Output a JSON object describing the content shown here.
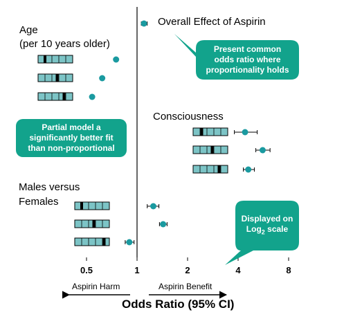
{
  "labels": {
    "age_line1": "Age",
    "age_line2": "(per 10 years older)",
    "consciousness": "Consciousness",
    "males_line1": "Males versus",
    "males_line2": "Females",
    "overall": "Overall  Effect of Aspirin",
    "harm": "Aspirin Harm",
    "benefit": "Aspirin Benefit"
  },
  "callouts": {
    "top": [
      "Present common",
      "odds ratio where",
      "proportionality holds"
    ],
    "left": [
      "Partial model a",
      "significantly better fit",
      "than non-proportional"
    ],
    "right_line1": "Displayed on",
    "right_line2_prefix": "Log",
    "right_line2_sub": "2",
    "right_line2_suffix": " scale"
  },
  "colors": {
    "marker": "#1a9aa0",
    "callout": "#12a38c",
    "box_fill": "#7cc4c6",
    "box_stroke": "#000000"
  },
  "chart_data": {
    "type": "scatter",
    "x_scale": "log2",
    "xlim": [
      0.4,
      8.6
    ],
    "xticks": [
      0.5,
      1,
      2,
      4,
      8
    ],
    "xtick_labels": [
      "0.5",
      "1",
      "2",
      "4",
      "8"
    ],
    "xlabel": "Odds Ratio (95% CI)",
    "reference_line": 1,
    "grid": false,
    "overall": {
      "or": 1.1,
      "lo": 1.06,
      "hi": 1.15
    },
    "series": [
      {
        "group": "Age",
        "points": [
          {
            "or": 0.75,
            "lo": 0.75,
            "hi": 0.75
          },
          {
            "or": 0.62,
            "lo": 0.62,
            "hi": 0.62
          },
          {
            "or": 0.54,
            "lo": 0.54,
            "hi": 0.54
          }
        ]
      },
      {
        "group": "Consciousness",
        "points": [
          {
            "or": 4.4,
            "lo": 3.8,
            "hi": 5.2
          },
          {
            "or": 5.6,
            "lo": 5.1,
            "hi": 6.2
          },
          {
            "or": 4.6,
            "lo": 4.3,
            "hi": 5.0
          }
        ]
      },
      {
        "group": "Males versus Females",
        "points": [
          {
            "or": 1.25,
            "lo": 1.15,
            "hi": 1.35
          },
          {
            "or": 1.43,
            "lo": 1.36,
            "hi": 1.51
          },
          {
            "or": 0.9,
            "lo": 0.85,
            "hi": 0.96
          }
        ]
      }
    ]
  }
}
